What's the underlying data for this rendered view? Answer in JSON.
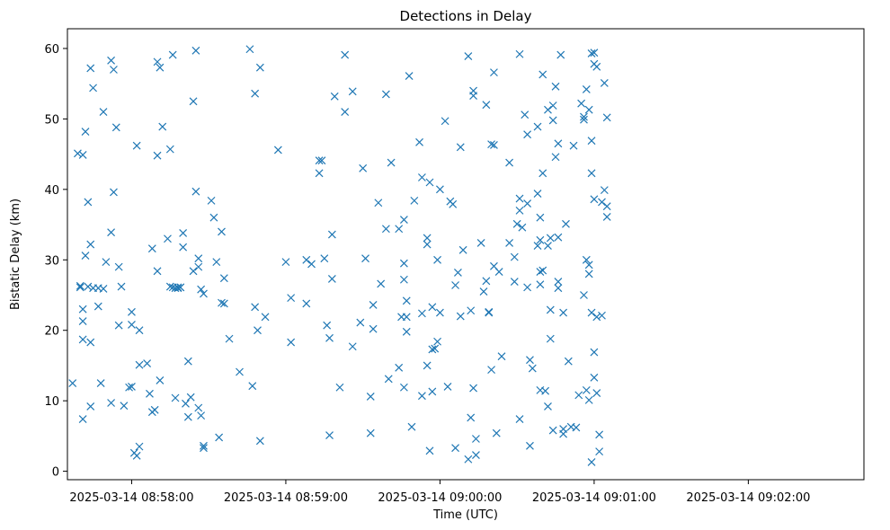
{
  "chart_data": {
    "type": "scatter",
    "title": "Detections in Delay",
    "xlabel": "Time (UTC)",
    "ylabel": "Bistatic Delay (km)",
    "marker": "x",
    "color": "#1f77b4",
    "grid": false,
    "legend": "none",
    "x_range_seconds": [
      "2025-03-14 08:57:35",
      "2025-03-14 09:02:45"
    ],
    "xlim": [
      "2025-03-14 08:57:35",
      "2025-03-14 09:02:45"
    ],
    "ylim": [
      -1.2,
      62.8
    ],
    "x_ticks": [
      "2025-03-14 08:58:00",
      "2025-03-14 08:59:00",
      "2025-03-14 09:00:00",
      "2025-03-14 09:01:00",
      "2025-03-14 09:02:00"
    ],
    "y_ticks": [
      0,
      10,
      20,
      30,
      40,
      50,
      60
    ],
    "points": [
      [
        "2025-03-14 08:57:37",
        12.5
      ],
      [
        "2025-03-14 08:57:39",
        45.1
      ],
      [
        "2025-03-14 08:57:40",
        26.1
      ],
      [
        "2025-03-14 08:57:40",
        26.3
      ],
      [
        "2025-03-14 08:57:41",
        44.9
      ],
      [
        "2025-03-14 08:57:41",
        23.0
      ],
      [
        "2025-03-14 08:57:41",
        21.3
      ],
      [
        "2025-03-14 08:57:41",
        18.7
      ],
      [
        "2025-03-14 08:57:41",
        7.4
      ],
      [
        "2025-03-14 08:57:42",
        48.2
      ],
      [
        "2025-03-14 08:57:42",
        30.6
      ],
      [
        "2025-03-14 08:57:43",
        26.2
      ],
      [
        "2025-03-14 08:57:43",
        38.2
      ],
      [
        "2025-03-14 08:57:44",
        57.2
      ],
      [
        "2025-03-14 08:57:44",
        32.2
      ],
      [
        "2025-03-14 08:57:44",
        18.3
      ],
      [
        "2025-03-14 08:57:44",
        9.2
      ],
      [
        "2025-03-14 08:57:45",
        54.4
      ],
      [
        "2025-03-14 08:57:45",
        26.0
      ],
      [
        "2025-03-14 08:57:47",
        26.0
      ],
      [
        "2025-03-14 08:57:47",
        23.4
      ],
      [
        "2025-03-14 08:57:48",
        12.5
      ],
      [
        "2025-03-14 08:57:49",
        51.0
      ],
      [
        "2025-03-14 08:57:49",
        25.9
      ],
      [
        "2025-03-14 08:57:50",
        29.7
      ],
      [
        "2025-03-14 08:57:52",
        58.3
      ],
      [
        "2025-03-14 08:57:52",
        33.9
      ],
      [
        "2025-03-14 08:57:52",
        9.7
      ],
      [
        "2025-03-14 08:57:53",
        57.0
      ],
      [
        "2025-03-14 08:57:53",
        39.6
      ],
      [
        "2025-03-14 08:57:54",
        48.8
      ],
      [
        "2025-03-14 08:57:55",
        29.0
      ],
      [
        "2025-03-14 08:57:55",
        20.7
      ],
      [
        "2025-03-14 08:57:56",
        26.2
      ],
      [
        "2025-03-14 08:57:57",
        9.3
      ],
      [
        "2025-03-14 08:57:59",
        11.9
      ],
      [
        "2025-03-14 08:58:00",
        22.6
      ],
      [
        "2025-03-14 08:58:00",
        20.8
      ],
      [
        "2025-03-14 08:58:00",
        12.0
      ],
      [
        "2025-03-14 08:58:01",
        2.6
      ],
      [
        "2025-03-14 08:58:02",
        2.2
      ],
      [
        "2025-03-14 08:58:02",
        46.2
      ],
      [
        "2025-03-14 08:58:03",
        15.1
      ],
      [
        "2025-03-14 08:58:03",
        3.5
      ],
      [
        "2025-03-14 08:58:03",
        20.0
      ],
      [
        "2025-03-14 08:58:06",
        15.3
      ],
      [
        "2025-03-14 08:58:07",
        11.0
      ],
      [
        "2025-03-14 08:58:08",
        31.6
      ],
      [
        "2025-03-14 08:58:08",
        8.4
      ],
      [
        "2025-03-14 08:58:09",
        8.7
      ],
      [
        "2025-03-14 08:58:10",
        58.1
      ],
      [
        "2025-03-14 08:58:10",
        44.8
      ],
      [
        "2025-03-14 08:58:10",
        28.4
      ],
      [
        "2025-03-14 08:58:11",
        57.3
      ],
      [
        "2025-03-14 08:58:11",
        12.9
      ],
      [
        "2025-03-14 08:58:12",
        48.9
      ],
      [
        "2025-03-14 08:58:14",
        33.0
      ],
      [
        "2025-03-14 08:58:15",
        45.7
      ],
      [
        "2025-03-14 08:58:15",
        26.2
      ],
      [
        "2025-03-14 08:58:16",
        59.1
      ],
      [
        "2025-03-14 08:58:16",
        26.1
      ],
      [
        "2025-03-14 08:58:17",
        10.4
      ],
      [
        "2025-03-14 08:58:17",
        26.0
      ],
      [
        "2025-03-14 08:58:18",
        26.1
      ],
      [
        "2025-03-14 08:58:18",
        26.0
      ],
      [
        "2025-03-14 08:58:19",
        26.1
      ],
      [
        "2025-03-14 08:58:19",
        26.1
      ],
      [
        "2025-03-14 08:58:20",
        31.8
      ],
      [
        "2025-03-14 08:58:20",
        33.8
      ],
      [
        "2025-03-14 08:58:21",
        9.6
      ],
      [
        "2025-03-14 08:58:22",
        7.7
      ],
      [
        "2025-03-14 08:58:22",
        15.6
      ],
      [
        "2025-03-14 08:58:23",
        10.5
      ],
      [
        "2025-03-14 08:58:24",
        28.4
      ],
      [
        "2025-03-14 08:58:24",
        52.5
      ],
      [
        "2025-03-14 08:58:25",
        39.7
      ],
      [
        "2025-03-14 08:58:25",
        59.7
      ],
      [
        "2025-03-14 08:58:26",
        29.0
      ],
      [
        "2025-03-14 08:58:26",
        9.0
      ],
      [
        "2025-03-14 08:58:26",
        30.2
      ],
      [
        "2025-03-14 08:58:27",
        25.8
      ],
      [
        "2025-03-14 08:58:27",
        7.9
      ],
      [
        "2025-03-14 08:58:28",
        3.3
      ],
      [
        "2025-03-14 08:58:28",
        3.6
      ],
      [
        "2025-03-14 08:58:28",
        25.2
      ],
      [
        "2025-03-14 08:58:31",
        38.4
      ],
      [
        "2025-03-14 08:58:32",
        36.0
      ],
      [
        "2025-03-14 08:58:33",
        29.7
      ],
      [
        "2025-03-14 08:58:34",
        4.8
      ],
      [
        "2025-03-14 08:58:35",
        34.0
      ],
      [
        "2025-03-14 08:58:35",
        23.9
      ],
      [
        "2025-03-14 08:58:36",
        27.4
      ],
      [
        "2025-03-14 08:58:36",
        23.8
      ],
      [
        "2025-03-14 08:58:38",
        18.8
      ],
      [
        "2025-03-14 08:58:42",
        14.1
      ],
      [
        "2025-03-14 08:58:46",
        59.9
      ],
      [
        "2025-03-14 08:58:47",
        12.1
      ],
      [
        "2025-03-14 08:58:48",
        53.6
      ],
      [
        "2025-03-14 08:58:48",
        23.3
      ],
      [
        "2025-03-14 08:58:49",
        20.0
      ],
      [
        "2025-03-14 08:58:50",
        57.3
      ],
      [
        "2025-03-14 08:58:50",
        4.3
      ],
      [
        "2025-03-14 08:58:52",
        21.9
      ],
      [
        "2025-03-14 08:58:57",
        45.6
      ],
      [
        "2025-03-14 08:59:00",
        29.7
      ],
      [
        "2025-03-14 08:59:02",
        18.3
      ],
      [
        "2025-03-14 08:59:02",
        24.6
      ],
      [
        "2025-03-14 08:59:08",
        23.8
      ],
      [
        "2025-03-14 08:59:08",
        30.0
      ],
      [
        "2025-03-14 08:59:10",
        29.4
      ],
      [
        "2025-03-14 08:59:13",
        42.3
      ],
      [
        "2025-03-14 08:59:13",
        44.1
      ],
      [
        "2025-03-14 08:59:14",
        44.1
      ],
      [
        "2025-03-14 08:59:15",
        30.2
      ],
      [
        "2025-03-14 08:59:16",
        20.7
      ],
      [
        "2025-03-14 08:59:17",
        5.1
      ],
      [
        "2025-03-14 08:59:17",
        18.9
      ],
      [
        "2025-03-14 08:59:18",
        27.3
      ],
      [
        "2025-03-14 08:59:18",
        33.6
      ],
      [
        "2025-03-14 08:59:19",
        53.2
      ],
      [
        "2025-03-14 08:59:21",
        11.9
      ],
      [
        "2025-03-14 08:59:23",
        51.0
      ],
      [
        "2025-03-14 08:59:23",
        59.1
      ],
      [
        "2025-03-14 08:59:26",
        53.9
      ],
      [
        "2025-03-14 08:59:26",
        17.7
      ],
      [
        "2025-03-14 08:59:29",
        21.1
      ],
      [
        "2025-03-14 08:59:30",
        43.0
      ],
      [
        "2025-03-14 08:59:31",
        30.2
      ],
      [
        "2025-03-14 08:59:33",
        5.4
      ],
      [
        "2025-03-14 08:59:33",
        10.6
      ],
      [
        "2025-03-14 08:59:34",
        23.6
      ],
      [
        "2025-03-14 08:59:34",
        20.2
      ],
      [
        "2025-03-14 08:59:36",
        38.1
      ],
      [
        "2025-03-14 08:59:37",
        26.6
      ],
      [
        "2025-03-14 08:59:39",
        53.5
      ],
      [
        "2025-03-14 08:59:39",
        34.4
      ],
      [
        "2025-03-14 08:59:40",
        13.1
      ],
      [
        "2025-03-14 08:59:41",
        43.8
      ],
      [
        "2025-03-14 08:59:44",
        34.4
      ],
      [
        "2025-03-14 08:59:44",
        14.7
      ],
      [
        "2025-03-14 08:59:45",
        21.9
      ],
      [
        "2025-03-14 08:59:46",
        11.9
      ],
      [
        "2025-03-14 08:59:46",
        29.5
      ],
      [
        "2025-03-14 08:59:46",
        27.2
      ],
      [
        "2025-03-14 08:59:46",
        35.7
      ],
      [
        "2025-03-14 08:59:47",
        19.8
      ],
      [
        "2025-03-14 08:59:47",
        21.9
      ],
      [
        "2025-03-14 08:59:47",
        24.2
      ],
      [
        "2025-03-14 08:59:48",
        56.1
      ],
      [
        "2025-03-14 08:59:49",
        6.3
      ],
      [
        "2025-03-14 08:59:50",
        38.4
      ],
      [
        "2025-03-14 08:59:52",
        46.7
      ],
      [
        "2025-03-14 08:59:53",
        41.7
      ],
      [
        "2025-03-14 08:59:53",
        10.7
      ],
      [
        "2025-03-14 08:59:53",
        22.4
      ],
      [
        "2025-03-14 08:59:55",
        33.1
      ],
      [
        "2025-03-14 08:59:55",
        32.2
      ],
      [
        "2025-03-14 08:59:55",
        15.0
      ],
      [
        "2025-03-14 08:59:56",
        41.0
      ],
      [
        "2025-03-14 08:59:56",
        2.9
      ],
      [
        "2025-03-14 08:59:57",
        17.3
      ],
      [
        "2025-03-14 08:59:57",
        23.3
      ],
      [
        "2025-03-14 08:59:57",
        11.3
      ],
      [
        "2025-03-14 08:59:58",
        17.4
      ],
      [
        "2025-03-14 08:59:59",
        30.0
      ],
      [
        "2025-03-14 08:59:59",
        18.4
      ],
      [
        "2025-03-14 09:00:00",
        40.0
      ],
      [
        "2025-03-14 09:00:00",
        22.5
      ],
      [
        "2025-03-14 09:00:02",
        49.7
      ],
      [
        "2025-03-14 09:00:03",
        12.0
      ],
      [
        "2025-03-14 09:00:04",
        38.3
      ],
      [
        "2025-03-14 09:00:05",
        37.9
      ],
      [
        "2025-03-14 09:00:06",
        26.4
      ],
      [
        "2025-03-14 09:00:06",
        3.3
      ],
      [
        "2025-03-14 09:00:07",
        28.2
      ],
      [
        "2025-03-14 09:00:08",
        46.0
      ],
      [
        "2025-03-14 09:00:08",
        22.0
      ],
      [
        "2025-03-14 09:00:09",
        31.4
      ],
      [
        "2025-03-14 09:00:11",
        58.9
      ],
      [
        "2025-03-14 09:00:11",
        1.7
      ],
      [
        "2025-03-14 09:00:12",
        22.8
      ],
      [
        "2025-03-14 09:00:12",
        7.6
      ],
      [
        "2025-03-14 09:00:13",
        53.3
      ],
      [
        "2025-03-14 09:00:13",
        54.0
      ],
      [
        "2025-03-14 09:00:13",
        11.8
      ],
      [
        "2025-03-14 09:00:14",
        4.6
      ],
      [
        "2025-03-14 09:00:14",
        2.3
      ],
      [
        "2025-03-14 09:00:16",
        32.4
      ],
      [
        "2025-03-14 09:00:17",
        25.5
      ],
      [
        "2025-03-14 09:00:18",
        52.0
      ],
      [
        "2025-03-14 09:00:18",
        27.0
      ],
      [
        "2025-03-14 09:00:19",
        22.6
      ],
      [
        "2025-03-14 09:00:19",
        22.5
      ],
      [
        "2025-03-14 09:00:20",
        46.4
      ],
      [
        "2025-03-14 09:00:20",
        14.4
      ],
      [
        "2025-03-14 09:00:21",
        29.1
      ],
      [
        "2025-03-14 09:00:21",
        46.3
      ],
      [
        "2025-03-14 09:00:21",
        56.6
      ],
      [
        "2025-03-14 09:00:22",
        5.4
      ],
      [
        "2025-03-14 09:00:23",
        28.3
      ],
      [
        "2025-03-14 09:00:24",
        16.3
      ],
      [
        "2025-03-14 09:00:27",
        43.8
      ],
      [
        "2025-03-14 09:00:27",
        32.4
      ],
      [
        "2025-03-14 09:00:29",
        30.4
      ],
      [
        "2025-03-14 09:00:29",
        26.9
      ],
      [
        "2025-03-14 09:00:30",
        35.1
      ],
      [
        "2025-03-14 09:00:31",
        37.0
      ],
      [
        "2025-03-14 09:00:31",
        38.7
      ],
      [
        "2025-03-14 09:00:31",
        7.4
      ],
      [
        "2025-03-14 09:00:31",
        59.2
      ],
      [
        "2025-03-14 09:00:32",
        34.6
      ],
      [
        "2025-03-14 09:00:33",
        50.6
      ],
      [
        "2025-03-14 09:00:34",
        47.8
      ],
      [
        "2025-03-14 09:00:34",
        26.1
      ],
      [
        "2025-03-14 09:00:34",
        38.0
      ],
      [
        "2025-03-14 09:00:35",
        3.6
      ],
      [
        "2025-03-14 09:00:35",
        15.8
      ],
      [
        "2025-03-14 09:00:36",
        14.6
      ],
      [
        "2025-03-14 09:00:38",
        48.9
      ],
      [
        "2025-03-14 09:00:38",
        39.4
      ],
      [
        "2025-03-14 09:00:38",
        32.0
      ],
      [
        "2025-03-14 09:00:39",
        36.0
      ],
      [
        "2025-03-14 09:00:39",
        32.8
      ],
      [
        "2025-03-14 09:00:39",
        11.5
      ],
      [
        "2025-03-14 09:00:39",
        28.3
      ],
      [
        "2025-03-14 09:00:39",
        26.5
      ],
      [
        "2025-03-14 09:00:40",
        56.3
      ],
      [
        "2025-03-14 09:00:40",
        42.3
      ],
      [
        "2025-03-14 09:00:40",
        28.5
      ],
      [
        "2025-03-14 09:00:41",
        11.4
      ],
      [
        "2025-03-14 09:00:42",
        9.2
      ],
      [
        "2025-03-14 09:00:42",
        51.3
      ],
      [
        "2025-03-14 09:00:42",
        32.0
      ],
      [
        "2025-03-14 09:00:43",
        33.1
      ],
      [
        "2025-03-14 09:00:43",
        22.9
      ],
      [
        "2025-03-14 09:00:43",
        18.8
      ],
      [
        "2025-03-14 09:00:44",
        51.9
      ],
      [
        "2025-03-14 09:00:44",
        49.8
      ],
      [
        "2025-03-14 09:00:44",
        5.8
      ],
      [
        "2025-03-14 09:00:45",
        54.6
      ],
      [
        "2025-03-14 09:00:45",
        44.6
      ],
      [
        "2025-03-14 09:00:46",
        46.5
      ],
      [
        "2025-03-14 09:00:46",
        26.9
      ],
      [
        "2025-03-14 09:00:46",
        26.0
      ],
      [
        "2025-03-14 09:00:46",
        33.2
      ],
      [
        "2025-03-14 09:00:47",
        59.1
      ],
      [
        "2025-03-14 09:00:48",
        22.5
      ],
      [
        "2025-03-14 09:00:48",
        5.3
      ],
      [
        "2025-03-14 09:00:48",
        6.0
      ],
      [
        "2025-03-14 09:00:49",
        35.1
      ],
      [
        "2025-03-14 09:00:50",
        15.6
      ],
      [
        "2025-03-14 09:00:51",
        6.3
      ],
      [
        "2025-03-14 09:00:52",
        46.2
      ],
      [
        "2025-03-14 09:00:53",
        6.2
      ],
      [
        "2025-03-14 09:00:54",
        10.8
      ],
      [
        "2025-03-14 09:00:55",
        52.2
      ],
      [
        "2025-03-14 09:00:56",
        49.9
      ],
      [
        "2025-03-14 09:00:56",
        50.3
      ],
      [
        "2025-03-14 09:00:56",
        25.0
      ],
      [
        "2025-03-14 09:00:57",
        54.2
      ],
      [
        "2025-03-14 09:00:57",
        11.5
      ],
      [
        "2025-03-14 09:00:57",
        30.0
      ],
      [
        "2025-03-14 09:00:58",
        51.3
      ],
      [
        "2025-03-14 09:00:58",
        29.3
      ],
      [
        "2025-03-14 09:00:58",
        28.0
      ],
      [
        "2025-03-14 09:00:58",
        10.1
      ],
      [
        "2025-03-14 09:00:59",
        46.9
      ],
      [
        "2025-03-14 09:00:59",
        42.3
      ],
      [
        "2025-03-14 09:00:59",
        22.5
      ],
      [
        "2025-03-14 09:00:59",
        1.3
      ],
      [
        "2025-03-14 09:00:59",
        59.3
      ],
      [
        "2025-03-14 09:01:00",
        57.8
      ],
      [
        "2025-03-14 09:01:00",
        59.4
      ],
      [
        "2025-03-14 09:01:00",
        38.6
      ],
      [
        "2025-03-14 09:01:00",
        16.9
      ],
      [
        "2025-03-14 09:01:00",
        13.3
      ],
      [
        "2025-03-14 09:01:01",
        57.4
      ],
      [
        "2025-03-14 09:01:01",
        21.9
      ],
      [
        "2025-03-14 09:01:01",
        11.1
      ],
      [
        "2025-03-14 09:01:02",
        5.2
      ],
      [
        "2025-03-14 09:01:02",
        2.8
      ],
      [
        "2025-03-14 09:01:03",
        38.2
      ],
      [
        "2025-03-14 09:01:03",
        22.1
      ],
      [
        "2025-03-14 09:01:04",
        39.9
      ],
      [
        "2025-03-14 09:01:04",
        55.1
      ],
      [
        "2025-03-14 09:01:05",
        37.6
      ],
      [
        "2025-03-14 09:01:05",
        36.1
      ],
      [
        "2025-03-14 09:01:05",
        50.2
      ]
    ]
  }
}
